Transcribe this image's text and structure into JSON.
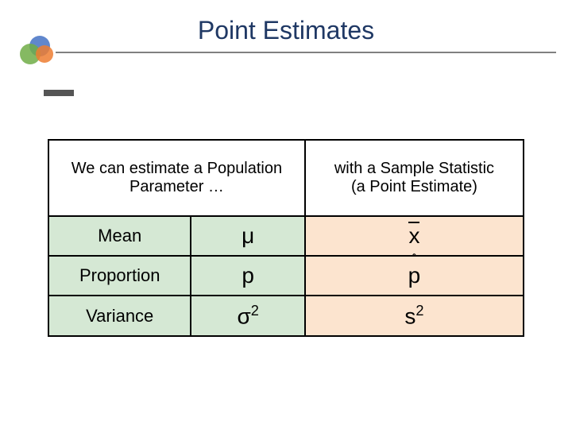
{
  "title": "Point Estimates",
  "decoration": {
    "circle_colors": [
      "#4472c4",
      "#70ad47",
      "#ed7d31"
    ],
    "strip_color": "#555555"
  },
  "colors": {
    "title_color": "#1f3864",
    "rule_color": "#808080",
    "left_bg": "#d5e8d4",
    "right_bg": "#fce4cf",
    "border": "#000000"
  },
  "header": {
    "left": "We can estimate a Population Parameter …",
    "right": "with a Sample Statistic\n(a Point Estimate)"
  },
  "rows": [
    {
      "label": "Mean",
      "symbol": "μ",
      "statistic_base": "x",
      "statistic_decor": "bar"
    },
    {
      "label": "Proportion",
      "symbol": "p",
      "statistic_base": "p",
      "statistic_decor": "hat"
    },
    {
      "label": "Variance",
      "symbol_base": "σ",
      "symbol_sup": "2",
      "statistic_base": "s",
      "statistic_sup": "2",
      "statistic_decor": "none"
    }
  ],
  "fonts": {
    "title_size_pt": 32,
    "header_size_pt": 20,
    "label_size_pt": 22,
    "symbol_size_pt": 28
  }
}
